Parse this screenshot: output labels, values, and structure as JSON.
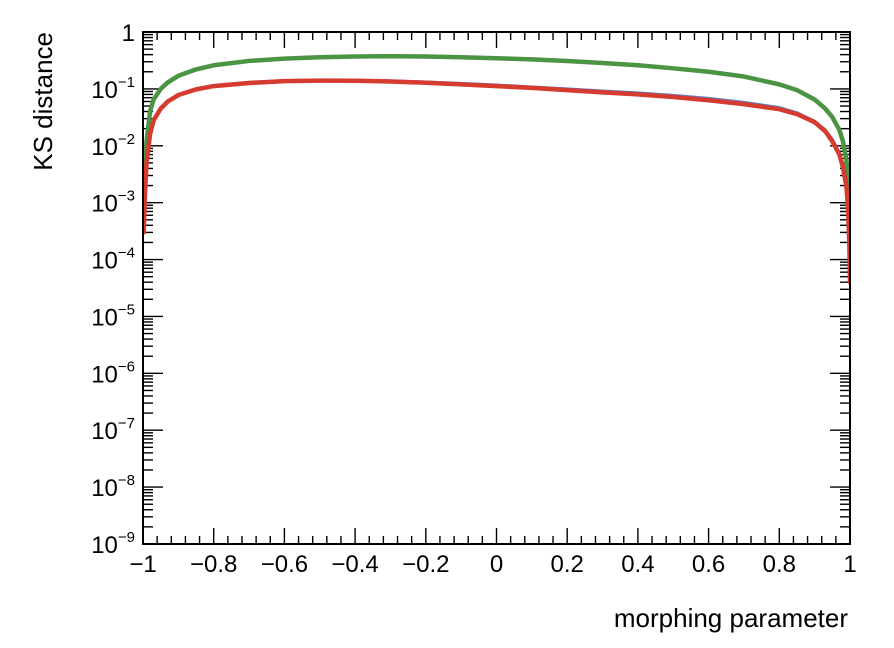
{
  "chart_data": {
    "type": "line",
    "title": "",
    "xlabel": "morphing parameter",
    "ylabel": "KS distance",
    "xlim": [
      -1,
      1
    ],
    "ylim": [
      1e-09,
      1
    ],
    "yscale": "log",
    "x_ticks": [
      -1,
      -0.8,
      -0.6,
      -0.4,
      -0.2,
      0,
      0.2,
      0.4,
      0.6,
      0.8,
      1
    ],
    "x_tick_labels": [
      "−1",
      "−0.8",
      "−0.6",
      "−0.4",
      "−0.2",
      "0",
      "0.2",
      "0.4",
      "0.6",
      "0.8",
      "1"
    ],
    "y_ticks": [
      1e-09,
      1e-08,
      1e-07,
      1e-06,
      1e-05,
      0.0001,
      0.001,
      0.01,
      0.1,
      1
    ],
    "y_tick_labels": [
      {
        "base": "10",
        "exp": "−9"
      },
      {
        "base": "10",
        "exp": "−8"
      },
      {
        "base": "10",
        "exp": "−7"
      },
      {
        "base": "10",
        "exp": "−6"
      },
      {
        "base": "10",
        "exp": "−5"
      },
      {
        "base": "10",
        "exp": "−4"
      },
      {
        "base": "10",
        "exp": "−3"
      },
      {
        "base": "10",
        "exp": "−2"
      },
      {
        "base": "10",
        "exp": "−1"
      },
      {
        "base": "1",
        "exp": ""
      }
    ],
    "grid": false,
    "legend": "none",
    "series": [
      {
        "color": "#4a9444",
        "x": [
          -0.995,
          -0.99,
          -0.98,
          -0.97,
          -0.95,
          -0.93,
          -0.9,
          -0.85,
          -0.8,
          -0.7,
          -0.6,
          -0.5,
          -0.4,
          -0.3,
          -0.2,
          -0.1,
          0,
          0.1,
          0.2,
          0.3,
          0.4,
          0.5,
          0.6,
          0.7,
          0.8,
          0.85,
          0.9,
          0.93,
          0.95,
          0.97,
          0.98,
          0.99,
          0.995,
          1.0
        ],
        "y": [
          0.0025,
          0.012,
          0.04,
          0.065,
          0.1,
          0.13,
          0.17,
          0.22,
          0.26,
          0.31,
          0.34,
          0.36,
          0.37,
          0.375,
          0.37,
          0.36,
          0.345,
          0.33,
          0.31,
          0.285,
          0.26,
          0.23,
          0.2,
          0.165,
          0.12,
          0.095,
          0.065,
          0.045,
          0.032,
          0.019,
          0.012,
          0.0055,
          0.0025,
          0.0008
        ]
      },
      {
        "color": "#5b80c8",
        "x": [
          -0.998,
          -0.995,
          -0.99,
          -0.98,
          -0.97,
          -0.95,
          -0.93,
          -0.9,
          -0.85,
          -0.8,
          -0.7,
          -0.6,
          -0.5,
          -0.4,
          -0.3,
          -0.2,
          -0.1,
          0,
          0.1,
          0.2,
          0.3,
          0.4,
          0.5,
          0.6,
          0.7,
          0.8,
          0.85,
          0.9,
          0.93,
          0.95,
          0.97,
          0.98,
          0.99,
          0.995,
          0.998,
          1.0
        ],
        "y": [
          0.0003,
          0.0012,
          0.005,
          0.016,
          0.028,
          0.045,
          0.06,
          0.08,
          0.1,
          0.115,
          0.13,
          0.14,
          0.143,
          0.142,
          0.138,
          0.132,
          0.125,
          0.117,
          0.108,
          0.1,
          0.092,
          0.085,
          0.077,
          0.068,
          0.058,
          0.047,
          0.038,
          0.027,
          0.019,
          0.013,
          0.0075,
          0.0045,
          0.002,
          0.0007,
          0.0002,
          4e-05
        ]
      },
      {
        "color": "#d63b2f",
        "x": [
          -0.998,
          -0.995,
          -0.99,
          -0.98,
          -0.97,
          -0.95,
          -0.93,
          -0.9,
          -0.85,
          -0.8,
          -0.7,
          -0.6,
          -0.5,
          -0.4,
          -0.3,
          -0.2,
          -0.1,
          0,
          0.1,
          0.2,
          0.3,
          0.4,
          0.5,
          0.6,
          0.7,
          0.8,
          0.85,
          0.9,
          0.93,
          0.95,
          0.97,
          0.98,
          0.99,
          0.995,
          0.998,
          1.0
        ],
        "y": [
          0.0003,
          0.0012,
          0.005,
          0.016,
          0.028,
          0.045,
          0.06,
          0.078,
          0.098,
          0.112,
          0.127,
          0.137,
          0.14,
          0.139,
          0.135,
          0.128,
          0.12,
          0.112,
          0.104,
          0.095,
          0.087,
          0.08,
          0.072,
          0.063,
          0.054,
          0.044,
          0.036,
          0.026,
          0.018,
          0.012,
          0.007,
          0.0042,
          0.0019,
          0.0007,
          0.0002,
          4e-05
        ]
      }
    ]
  }
}
